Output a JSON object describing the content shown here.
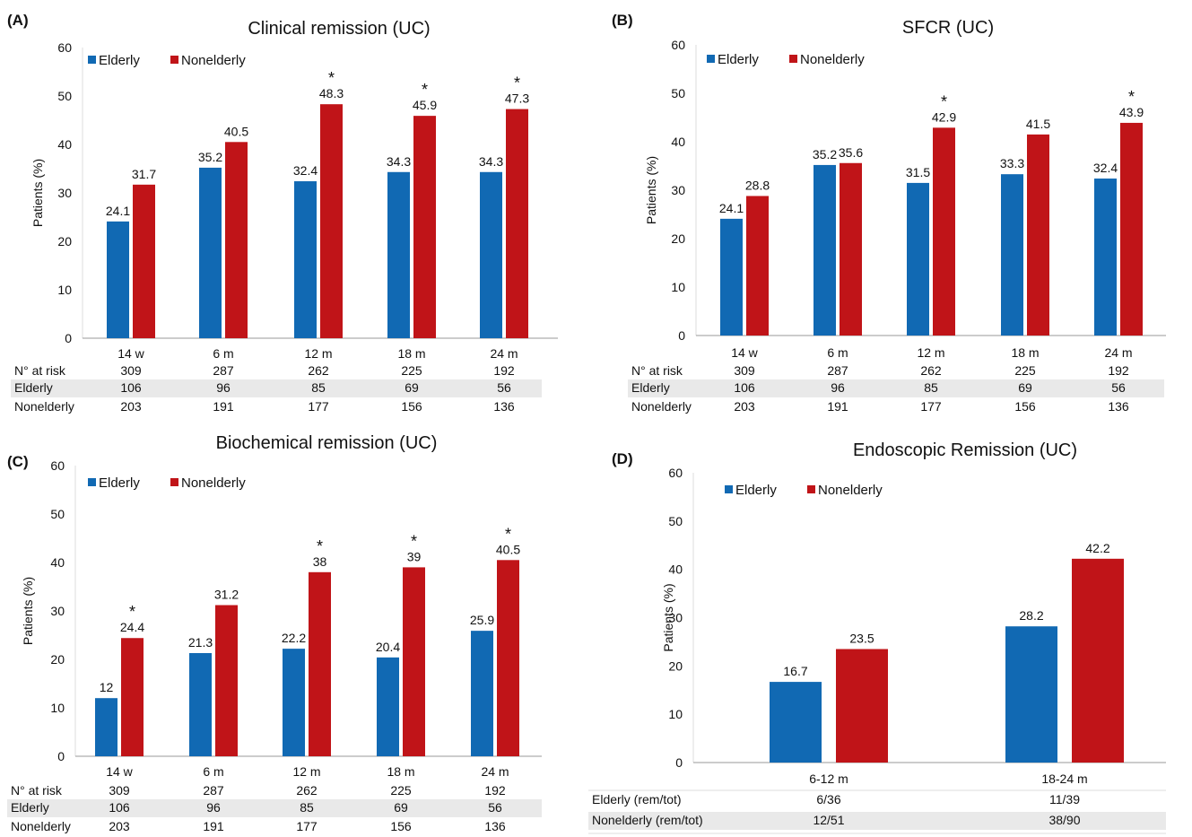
{
  "colors": {
    "elderly": "#1169b3",
    "nonelderly": "#c01418",
    "table_band": "#e9e9e9",
    "axis": "#9a9a9a",
    "grid": "#dcdcdc"
  },
  "chart_data": [
    {
      "panel": "(A)",
      "type": "bar",
      "title": "Clinical remission (UC)",
      "ylabel": "Patients (%)",
      "ylim": [
        0,
        60
      ],
      "yticks": [
        0,
        10,
        20,
        30,
        40,
        50,
        60
      ],
      "categories": [
        "14 w",
        "6 m",
        "12 m",
        "18 m",
        "24 m"
      ],
      "series": [
        {
          "name": "Elderly",
          "values": [
            24.1,
            35.2,
            32.4,
            34.3,
            34.3
          ],
          "labels": [
            "24.1",
            "35.2",
            "32.4",
            "34.3",
            "34.3"
          ]
        },
        {
          "name": "Nonelderly",
          "values": [
            31.7,
            40.5,
            48.3,
            45.9,
            47.3
          ],
          "labels": [
            "31.7",
            "40.5",
            "48.3",
            "45.9",
            "47.3"
          ]
        }
      ],
      "significant": [
        false,
        false,
        true,
        true,
        true
      ],
      "legend": "top-left",
      "table": [
        {
          "label": "N° at risk",
          "values": [
            "309",
            "287",
            "262",
            "225",
            "192"
          ]
        },
        {
          "label": "Elderly",
          "values": [
            "106",
            "96",
            "85",
            "69",
            "56"
          ]
        },
        {
          "label": "Nonelderly",
          "values": [
            "203",
            "191",
            "177",
            "156",
            "136"
          ]
        }
      ]
    },
    {
      "panel": "(B)",
      "type": "bar",
      "title": "SFCR (UC)",
      "ylabel": "Patients (%)",
      "ylim": [
        0,
        60
      ],
      "yticks": [
        0,
        10,
        20,
        30,
        40,
        50,
        60
      ],
      "categories": [
        "14 w",
        "6 m",
        "12 m",
        "18 m",
        "24 m"
      ],
      "series": [
        {
          "name": "Elderly",
          "values": [
            24.1,
            35.2,
            31.5,
            33.3,
            32.4
          ],
          "labels": [
            "24.1",
            "35.2",
            "31.5",
            "33.3",
            "32.4"
          ]
        },
        {
          "name": "Nonelderly",
          "values": [
            28.8,
            35.6,
            42.9,
            41.5,
            43.9
          ],
          "labels": [
            "28.8",
            "35.6",
            "42.9",
            "41.5",
            "43.9"
          ]
        }
      ],
      "significant": [
        false,
        false,
        true,
        false,
        true
      ],
      "legend": "top-left",
      "table": [
        {
          "label": "N° at risk",
          "values": [
            "309",
            "287",
            "262",
            "225",
            "192"
          ]
        },
        {
          "label": "Elderly",
          "values": [
            "106",
            "96",
            "85",
            "69",
            "56"
          ]
        },
        {
          "label": "Nonelderly",
          "values": [
            "203",
            "191",
            "177",
            "156",
            "136"
          ]
        }
      ]
    },
    {
      "panel": "(C)",
      "type": "bar",
      "title": "Biochemical remission (UC)",
      "ylabel": "Patients (%)",
      "ylim": [
        0,
        60
      ],
      "yticks": [
        0,
        10,
        20,
        30,
        40,
        50,
        60
      ],
      "categories": [
        "14 w",
        "6 m",
        "12 m",
        "18 m",
        "24 m"
      ],
      "series": [
        {
          "name": "Elderly",
          "values": [
            12,
            21.3,
            22.2,
            20.4,
            25.9
          ],
          "labels": [
            "12",
            "21.3",
            "22.2",
            "20.4",
            "25.9"
          ]
        },
        {
          "name": "Nonelderly",
          "values": [
            24.4,
            31.2,
            38,
            39,
            40.5
          ],
          "labels": [
            "24.4",
            "31.2",
            "38",
            "39",
            "40.5"
          ]
        }
      ],
      "significant": [
        true,
        false,
        true,
        true,
        true
      ],
      "legend": "top-left",
      "table": [
        {
          "label": "N° at risk",
          "values": [
            "309",
            "287",
            "262",
            "225",
            "192"
          ]
        },
        {
          "label": "Elderly",
          "values": [
            "106",
            "96",
            "85",
            "69",
            "56"
          ]
        },
        {
          "label": "Nonelderly",
          "values": [
            "203",
            "191",
            "177",
            "156",
            "136"
          ]
        }
      ]
    },
    {
      "panel": "(D)",
      "type": "bar",
      "title": "Endoscopic Remission (UC)",
      "ylabel": "Patients (%)",
      "ylim": [
        0,
        60
      ],
      "yticks": [
        0,
        10,
        20,
        30,
        40,
        50,
        60
      ],
      "categories": [
        "6-12 m",
        "18-24 m"
      ],
      "series": [
        {
          "name": "Elderly",
          "values": [
            16.7,
            28.2
          ],
          "labels": [
            "16.7",
            "28.2"
          ]
        },
        {
          "name": "Nonelderly",
          "values": [
            23.5,
            42.2
          ],
          "labels": [
            "23.5",
            "42.2"
          ]
        }
      ],
      "significant": [
        false,
        false
      ],
      "legend": "top-left",
      "table": [
        {
          "label": "Elderly (rem/tot)",
          "values": [
            "6/36",
            "11/39"
          ]
        },
        {
          "label": "Nonelderly (rem/tot)",
          "values": [
            "12/51",
            "38/90"
          ]
        }
      ]
    }
  ]
}
